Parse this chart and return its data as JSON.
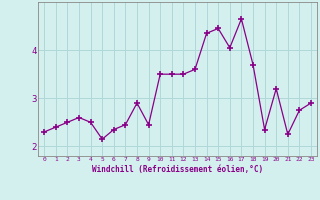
{
  "x": [
    0,
    1,
    2,
    3,
    4,
    5,
    6,
    7,
    8,
    9,
    10,
    11,
    12,
    13,
    14,
    15,
    16,
    17,
    18,
    19,
    20,
    21,
    22,
    23
  ],
  "y": [
    2.3,
    2.4,
    2.5,
    2.6,
    2.5,
    2.15,
    2.35,
    2.45,
    2.9,
    2.45,
    3.5,
    3.5,
    3.5,
    3.6,
    4.35,
    4.45,
    4.05,
    4.65,
    3.7,
    2.35,
    3.2,
    2.25,
    2.75,
    2.9
  ],
  "line_color": "#880088",
  "marker": "+",
  "marker_size": 5,
  "marker_lw": 1.2,
  "xlabel": "Windchill (Refroidissement éolien,°C)",
  "xlim": [
    -0.5,
    23.5
  ],
  "ylim": [
    1.8,
    5.0
  ],
  "yticks": [
    2,
    3,
    4
  ],
  "xticks": [
    0,
    1,
    2,
    3,
    4,
    5,
    6,
    7,
    8,
    9,
    10,
    11,
    12,
    13,
    14,
    15,
    16,
    17,
    18,
    19,
    20,
    21,
    22,
    23
  ],
  "bg_color": "#d4f0ee",
  "grid_color": "#b0d8d8",
  "spine_color": "#888888"
}
